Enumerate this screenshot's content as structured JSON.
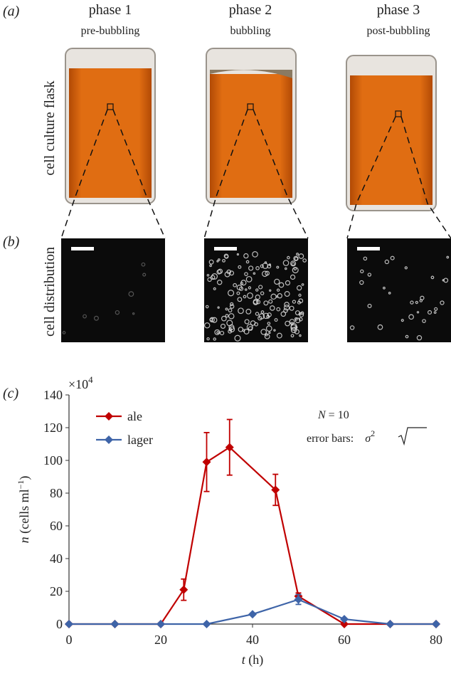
{
  "panel_labels": [
    "(a)",
    "(b)",
    "(c)"
  ],
  "phases": [
    {
      "title": "phase 1",
      "subtitle": "pre-bubbling"
    },
    {
      "title": "phase 2",
      "subtitle": "bubbling"
    },
    {
      "title": "phase 3",
      "subtitle": "post-bubbling"
    }
  ],
  "row_labels": [
    "cell culture flask",
    "cell distribution"
  ],
  "chart_data": {
    "type": "line",
    "multiplier": [
      "×10",
      "4"
    ],
    "xlabel": [
      "t",
      " (h)"
    ],
    "ylabel": [
      "n",
      " (cells ml",
      "−1",
      ")"
    ],
    "annotations": {
      "n": [
        "N",
        " = 10"
      ],
      "errors": [
        "error bars: ",
        "σ",
        "2"
      ]
    },
    "xlim": [
      0,
      80
    ],
    "xticks": [
      0,
      20,
      40,
      60,
      80
    ],
    "ylim": [
      0,
      140
    ],
    "yticks": [
      0,
      20,
      40,
      60,
      80,
      100,
      120,
      140
    ],
    "legend": "upper left",
    "series": [
      {
        "name": "ale",
        "color": "#c00000",
        "x": [
          0,
          10,
          20,
          25,
          30,
          35,
          45,
          50,
          60,
          70,
          80
        ],
        "values": [
          0,
          0,
          0,
          21,
          99,
          108,
          82,
          17,
          0,
          0,
          0
        ],
        "errors": [
          null,
          null,
          null,
          6.5,
          18,
          17,
          9.5,
          2,
          null,
          null,
          null
        ]
      },
      {
        "name": "lager",
        "color": "#3e64a8",
        "x": [
          0,
          10,
          20,
          30,
          40,
          50,
          60,
          70,
          80
        ],
        "values": [
          0,
          0,
          0,
          0,
          6,
          15,
          3,
          0,
          0
        ],
        "errors": [
          null,
          null,
          null,
          null,
          null,
          3,
          null,
          null,
          null
        ]
      }
    ]
  }
}
